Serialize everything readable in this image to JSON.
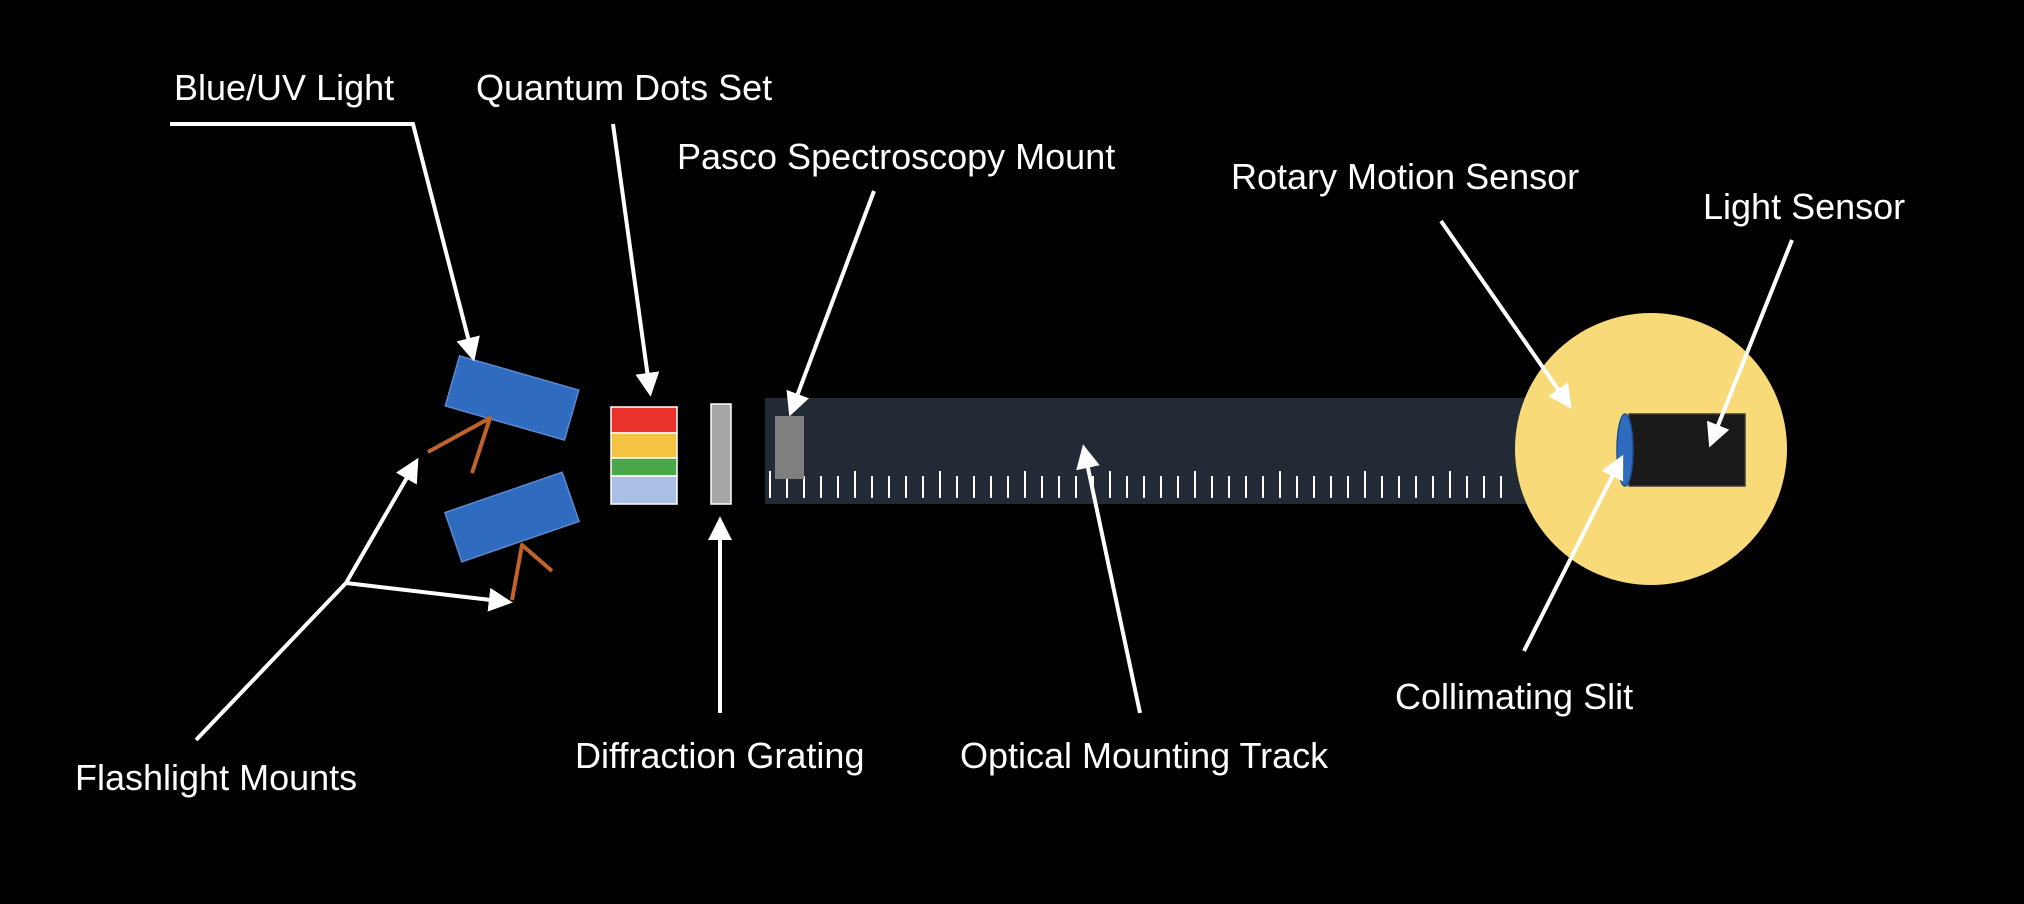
{
  "diagram": {
    "background": "#000000",
    "labels": {
      "blue_uv_light": "Blue/UV Light",
      "quantum_dots_set": "Quantum Dots Set",
      "pasco_mount": "Pasco Spectroscopy Mount",
      "rotary_motion_sensor": "Rotary Motion Sensor",
      "light_sensor": "Light Sensor",
      "collimating_slit": "Collimating Slit",
      "flashlight_mounts": "Flashlight Mounts",
      "diffraction_grating": "Diffraction Grating",
      "optical_mounting_track": "Optical Mounting Track"
    },
    "colors": {
      "label_text": "#ffffff",
      "flashlight": "#2f6cc0",
      "flashlight_mount": "#c0632a",
      "quantum_dot_red": "#e8322b",
      "quantum_dot_yellow": "#f5c242",
      "quantum_dot_green": "#4aa84a",
      "quantum_dot_lightblue": "#a9bfe6",
      "grating": "#a6a6a6",
      "pasco_mount": "#7f7f7f",
      "track": "#222a35",
      "rotary_sensor": "#f9da78",
      "light_sensor": "#1a1a1a",
      "collimating_slit": "#2f6cc0"
    },
    "quantum_dot_colors": [
      "quantum_dot_red",
      "quantum_dot_yellow",
      "quantum_dot_green",
      "quantum_dot_lightblue"
    ]
  }
}
